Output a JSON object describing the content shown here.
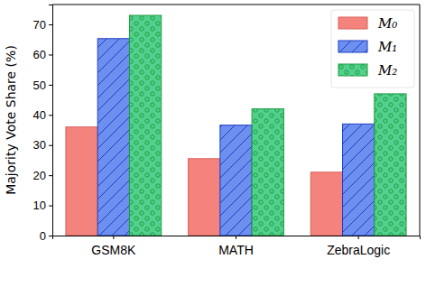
{
  "chart_data": {
    "type": "bar",
    "y_label": "Majority Vote Share (%)",
    "categories": [
      "GSM8K",
      "MATH",
      "ZebraLogic"
    ],
    "series": [
      {
        "name": "M₀",
        "color": "#f4837d",
        "values": [
          36,
          25.5,
          21
        ]
      },
      {
        "name": "M₁",
        "color": "#6d8ff0",
        "values": [
          65.3,
          36.6,
          37
        ]
      },
      {
        "name": "M₂",
        "color": "#52d08e",
        "values": [
          73,
          42,
          47
        ]
      }
    ],
    "ylim": [
      0,
      76.6
    ],
    "yticks": [
      0,
      10,
      20,
      30,
      40,
      50,
      60,
      70
    ],
    "legend": "upper right",
    "grid": false
  }
}
